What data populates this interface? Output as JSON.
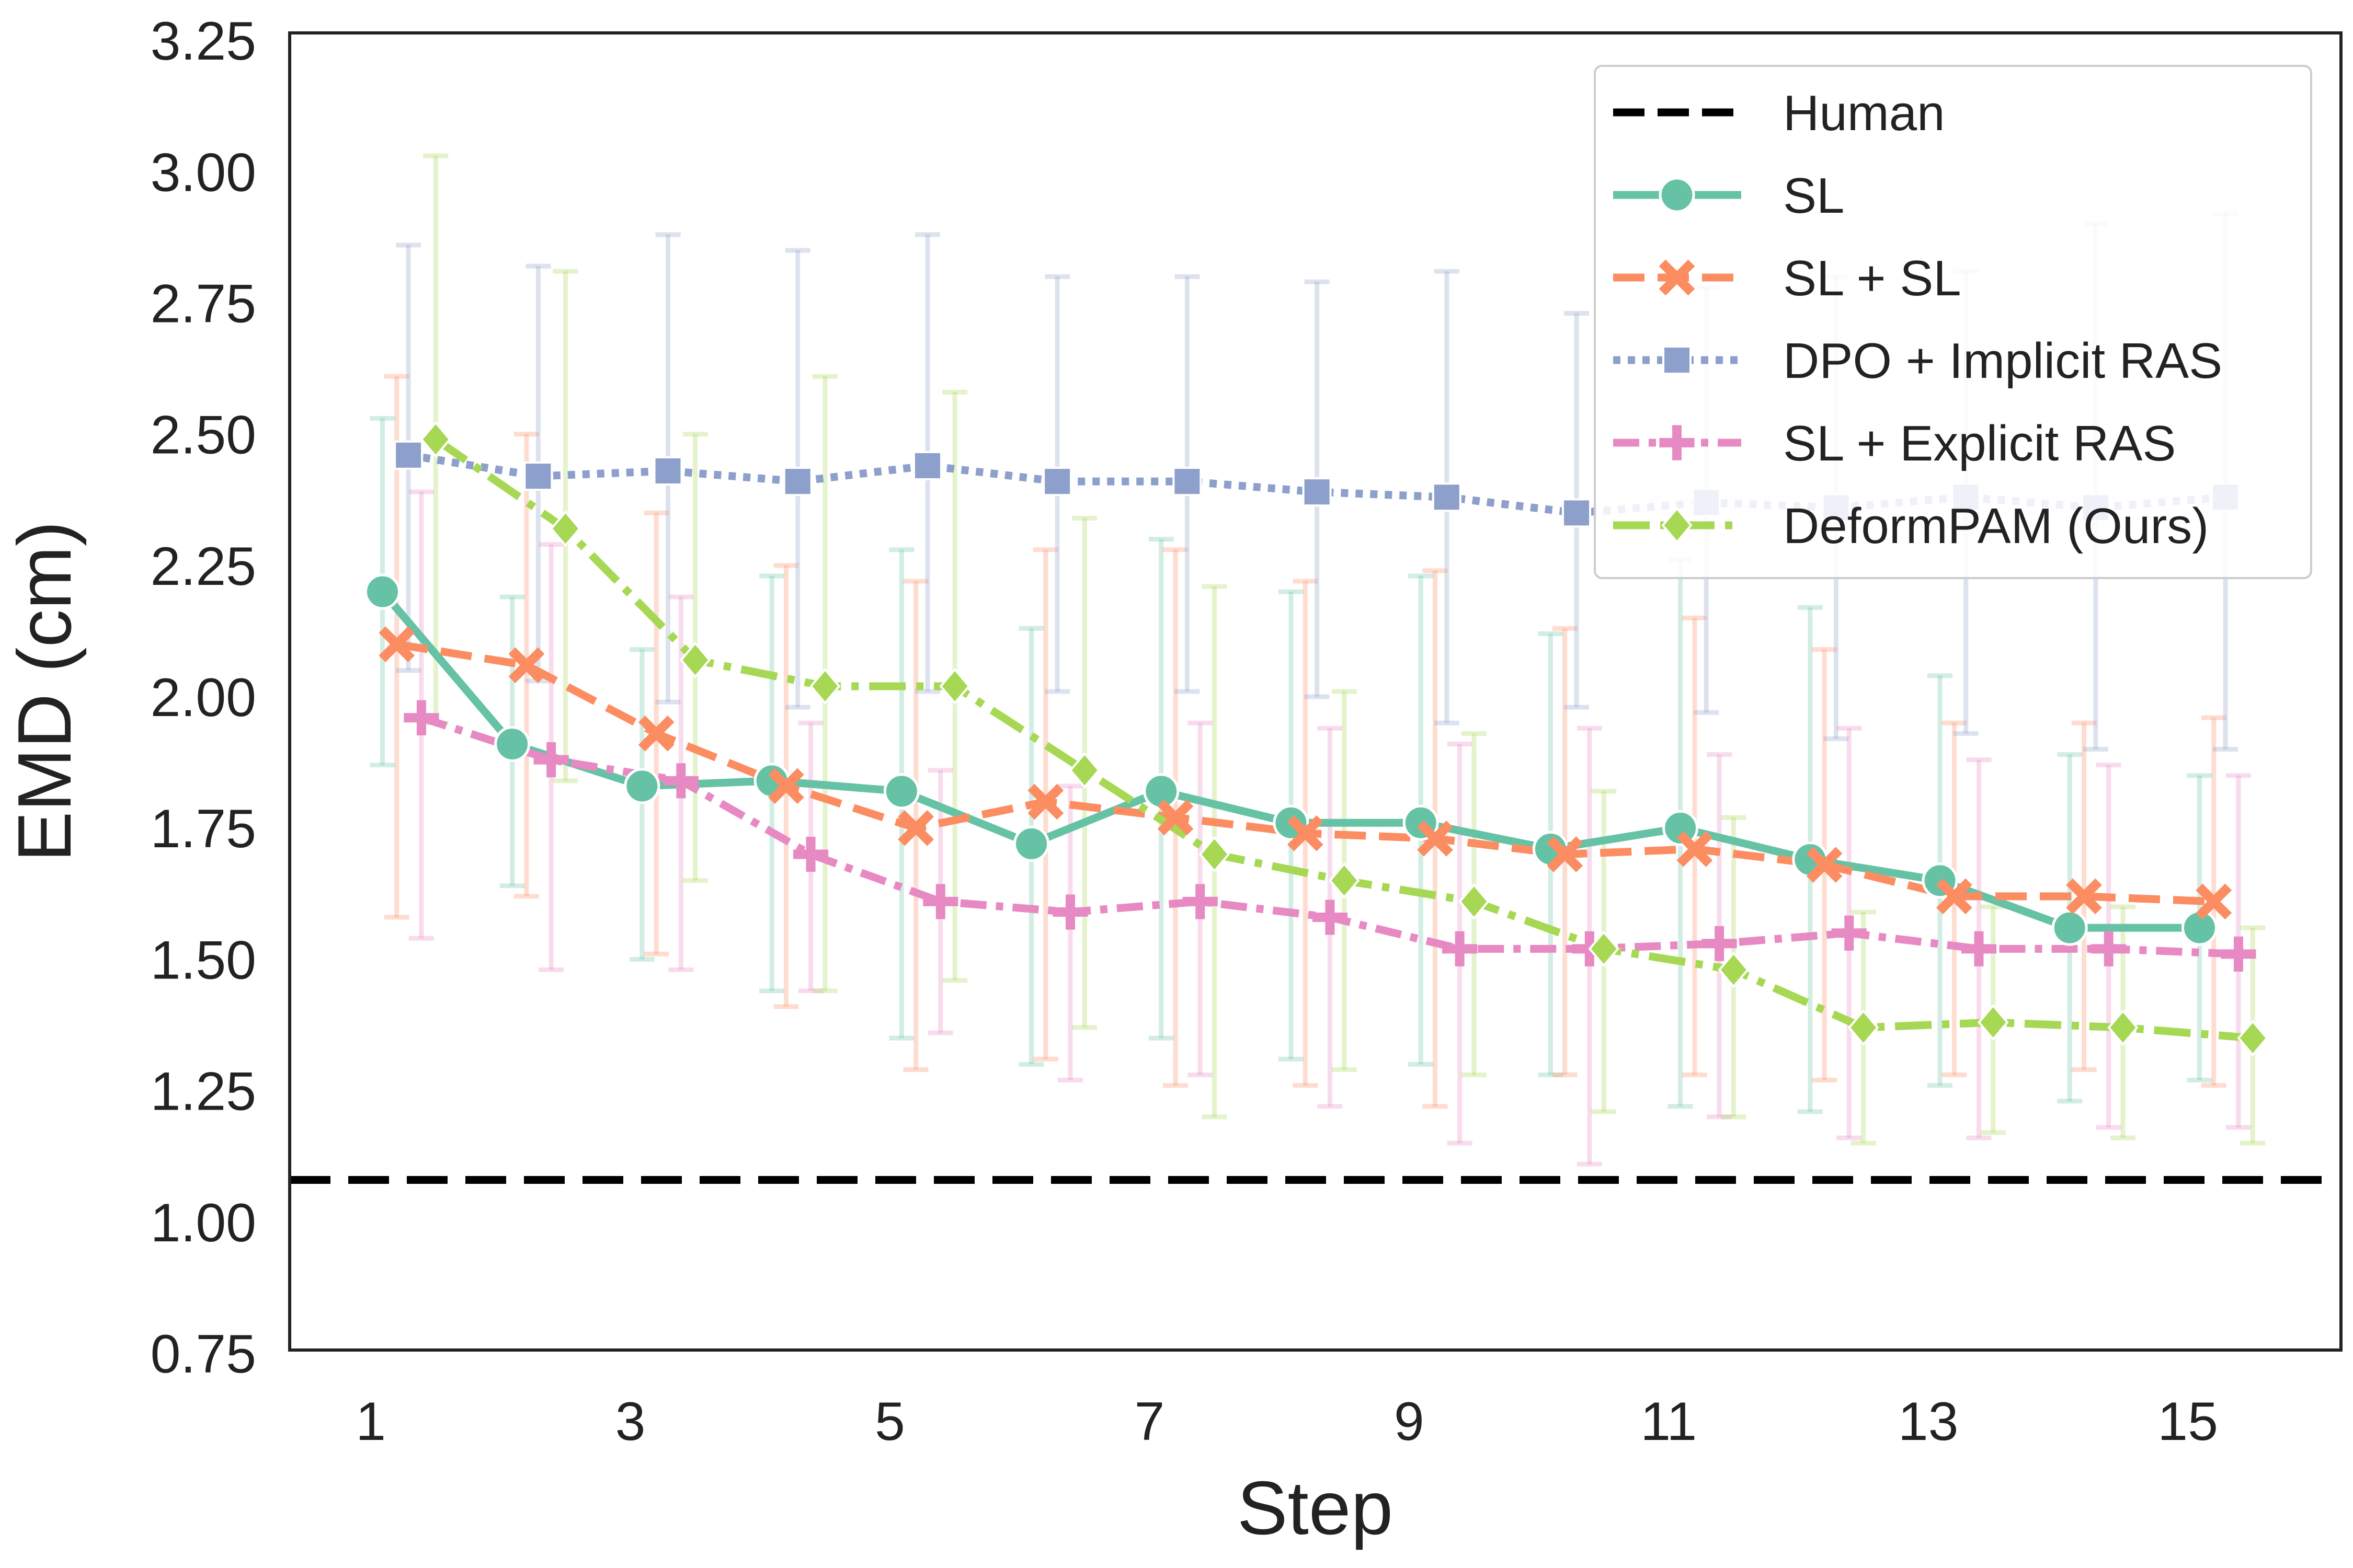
{
  "chart_data": {
    "type": "line",
    "title": "",
    "xlabel": "Step",
    "ylabel": "EMD (cm)",
    "xlim": [
      0.375,
      16.18
    ],
    "ylim": [
      0.756,
      3.264
    ],
    "xticks": [
      1,
      3,
      5,
      7,
      9,
      11,
      13,
      15
    ],
    "yticks": [
      "0.75",
      "1.00",
      "1.25",
      "1.50",
      "1.75",
      "2.00",
      "2.25",
      "2.50",
      "2.75",
      "3.00",
      "3.25"
    ],
    "grid": false,
    "legend_position": "top-right",
    "x": [
      1,
      2,
      3,
      4,
      5,
      6,
      7,
      8,
      9,
      10,
      11,
      12,
      13,
      14,
      15
    ],
    "reference_line": {
      "name": "Human",
      "value": 1.08,
      "color": "#000000",
      "style": "dashed"
    },
    "series": [
      {
        "name": "SL",
        "color": "#66c2a5",
        "marker": "circle",
        "style": "solid",
        "dodge": 0.09,
        "values": [
          2.2,
          1.91,
          1.83,
          1.84,
          1.82,
          1.72,
          1.82,
          1.76,
          1.76,
          1.71,
          1.75,
          1.69,
          1.65,
          1.56,
          1.56
        ],
        "upper": [
          2.53,
          2.19,
          2.09,
          2.23,
          2.28,
          2.13,
          2.3,
          2.2,
          2.23,
          2.12,
          2.26,
          2.17,
          2.04,
          1.89,
          1.85
        ],
        "lower": [
          1.87,
          1.64,
          1.5,
          1.44,
          1.35,
          1.3,
          1.35,
          1.31,
          1.3,
          1.28,
          1.22,
          1.21,
          1.26,
          1.23,
          1.27
        ]
      },
      {
        "name": "SL + SL",
        "color": "#fc8d62",
        "marker": "x",
        "style": "dashed",
        "dodge": 0.2,
        "values": [
          2.1,
          2.06,
          1.93,
          1.83,
          1.75,
          1.8,
          1.77,
          1.74,
          1.73,
          1.7,
          1.71,
          1.68,
          1.62,
          1.62,
          1.61
        ],
        "upper": [
          2.61,
          2.5,
          2.35,
          2.25,
          2.22,
          2.28,
          2.28,
          2.22,
          2.24,
          2.13,
          2.15,
          2.09,
          1.95,
          1.95,
          1.96
        ],
        "lower": [
          1.58,
          1.62,
          1.51,
          1.41,
          1.29,
          1.31,
          1.26,
          1.26,
          1.22,
          1.28,
          1.28,
          1.27,
          1.28,
          1.29,
          1.26
        ]
      },
      {
        "name": "DPO + Implicit RAS",
        "color": "#8da0cb",
        "marker": "square",
        "style": "dotted",
        "dodge": 0.29,
        "values": [
          2.46,
          2.42,
          2.43,
          2.41,
          2.44,
          2.41,
          2.41,
          2.39,
          2.38,
          2.35,
          2.37,
          2.36,
          2.38,
          2.36,
          2.38
        ],
        "upper": [
          2.86,
          2.82,
          2.88,
          2.85,
          2.88,
          2.8,
          2.8,
          2.79,
          2.81,
          2.73,
          2.78,
          2.8,
          2.81,
          2.9,
          2.92
        ],
        "lower": [
          2.05,
          2.03,
          1.99,
          1.98,
          2.01,
          2.01,
          2.01,
          2.0,
          1.95,
          1.98,
          1.97,
          1.92,
          1.93,
          1.9,
          1.9
        ]
      },
      {
        "name": "SL + Explicit RAS",
        "color": "#e78ac3",
        "marker": "plus",
        "style": "dashdot",
        "dodge": 0.39,
        "values": [
          1.96,
          1.88,
          1.84,
          1.7,
          1.61,
          1.59,
          1.61,
          1.58,
          1.52,
          1.52,
          1.53,
          1.55,
          1.52,
          1.52,
          1.51
        ],
        "upper": [
          2.39,
          2.29,
          2.19,
          1.95,
          1.86,
          1.83,
          1.95,
          1.94,
          1.91,
          1.94,
          1.89,
          1.94,
          1.88,
          1.87,
          1.85
        ],
        "lower": [
          1.54,
          1.48,
          1.48,
          1.44,
          1.36,
          1.27,
          1.28,
          1.22,
          1.15,
          1.11,
          1.2,
          1.16,
          1.16,
          1.18,
          1.18
        ]
      },
      {
        "name": "DeformPAM (Ours)",
        "color": "#a6d854",
        "marker": "diamond",
        "style": "dashdot-long",
        "dodge": 0.5,
        "values": [
          2.49,
          2.32,
          2.07,
          2.02,
          2.02,
          1.86,
          1.7,
          1.65,
          1.61,
          1.52,
          1.48,
          1.37,
          1.38,
          1.37,
          1.35
        ],
        "upper": [
          3.03,
          2.81,
          2.5,
          2.61,
          2.58,
          2.34,
          2.21,
          2.01,
          1.93,
          1.82,
          1.77,
          1.59,
          1.6,
          1.6,
          1.56
        ],
        "lower": [
          1.95,
          1.84,
          1.65,
          1.44,
          1.46,
          1.37,
          1.2,
          1.29,
          1.28,
          1.21,
          1.2,
          1.15,
          1.17,
          1.16,
          1.15
        ]
      }
    ]
  }
}
